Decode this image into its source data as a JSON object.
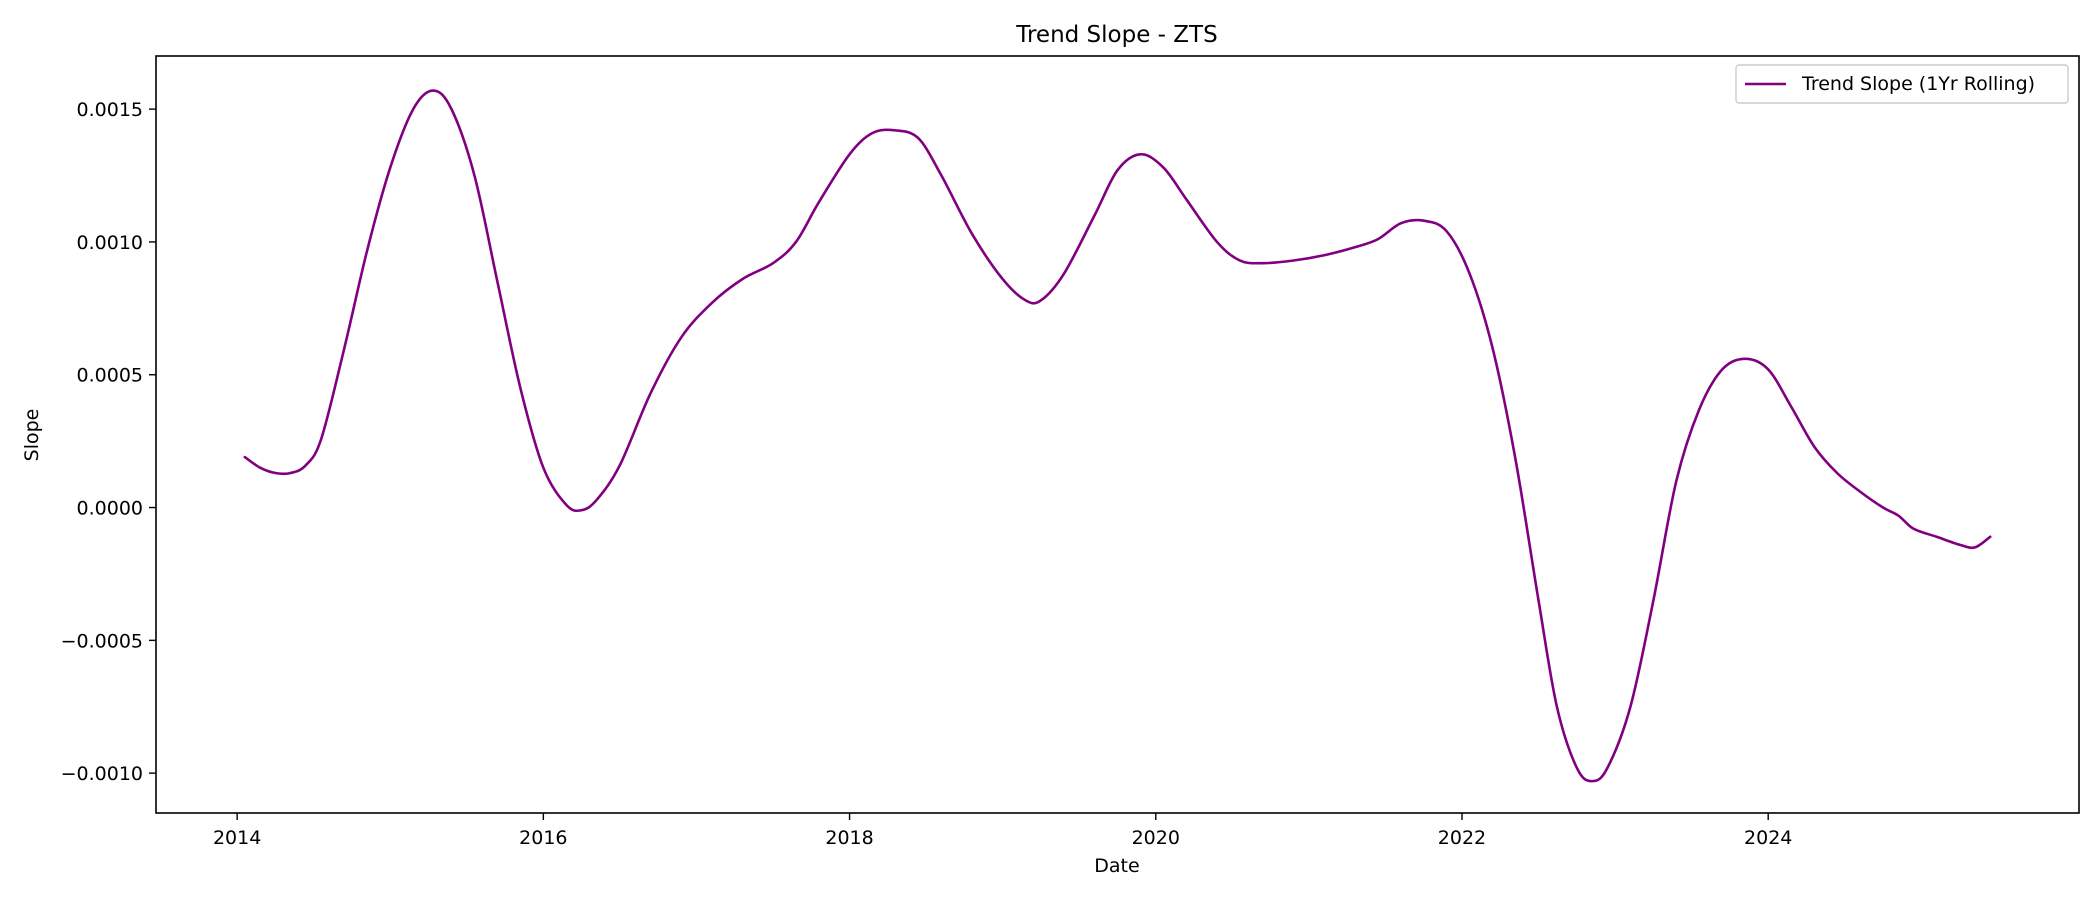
{
  "chart_data": {
    "type": "line",
    "title": "Trend Slope - ZTS",
    "xlabel": "Date",
    "ylabel": "Slope",
    "xlim": [
      2013.47,
      2026.03
    ],
    "ylim": [
      -0.00115,
      0.0017
    ],
    "x_ticks": [
      2014,
      2016,
      2018,
      2020,
      2022,
      2024
    ],
    "x_tick_labels": [
      "2014",
      "2016",
      "2018",
      "2020",
      "2022",
      "2024"
    ],
    "y_ticks": [
      -0.001,
      -0.0005,
      0.0,
      0.0005,
      0.001,
      0.0015
    ],
    "y_tick_labels": [
      "−0.0010",
      "−0.0005",
      "0.0000",
      "0.0005",
      "0.0010",
      "0.0015"
    ],
    "grid": false,
    "legend_position": "top-right",
    "series": [
      {
        "name": "Trend Slope (1Yr Rolling)",
        "color": "#800080",
        "points": [
          [
            2014.05,
            0.00019
          ],
          [
            2014.15,
            0.00015
          ],
          [
            2014.25,
            0.00013
          ],
          [
            2014.35,
            0.00013
          ],
          [
            2014.45,
            0.00016
          ],
          [
            2014.55,
            0.00026
          ],
          [
            2014.7,
            0.0006
          ],
          [
            2014.85,
            0.00097
          ],
          [
            2015.0,
            0.00128
          ],
          [
            2015.15,
            0.0015
          ],
          [
            2015.28,
            0.00157
          ],
          [
            2015.4,
            0.0015
          ],
          [
            2015.55,
            0.00125
          ],
          [
            2015.7,
            0.00085
          ],
          [
            2015.85,
            0.00045
          ],
          [
            2016.0,
            0.00015
          ],
          [
            2016.15,
            1e-05
          ],
          [
            2016.25,
            -1e-05
          ],
          [
            2016.35,
            3e-05
          ],
          [
            2016.5,
            0.00016
          ],
          [
            2016.7,
            0.00043
          ],
          [
            2016.9,
            0.00064
          ],
          [
            2017.1,
            0.00077
          ],
          [
            2017.3,
            0.00086
          ],
          [
            2017.5,
            0.00092
          ],
          [
            2017.65,
            0.001
          ],
          [
            2017.8,
            0.00115
          ],
          [
            2018.0,
            0.00133
          ],
          [
            2018.15,
            0.00141
          ],
          [
            2018.3,
            0.00142
          ],
          [
            2018.45,
            0.00139
          ],
          [
            2018.6,
            0.00125
          ],
          [
            2018.8,
            0.00103
          ],
          [
            2019.0,
            0.00086
          ],
          [
            2019.15,
            0.00078
          ],
          [
            2019.25,
            0.00078
          ],
          [
            2019.4,
            0.00088
          ],
          [
            2019.6,
            0.0011
          ],
          [
            2019.75,
            0.00127
          ],
          [
            2019.9,
            0.00133
          ],
          [
            2020.05,
            0.00128
          ],
          [
            2020.2,
            0.00116
          ],
          [
            2020.4,
            0.001
          ],
          [
            2020.55,
            0.00093
          ],
          [
            2020.7,
            0.00092
          ],
          [
            2020.9,
            0.00093
          ],
          [
            2021.1,
            0.00095
          ],
          [
            2021.3,
            0.00098
          ],
          [
            2021.45,
            0.00101
          ],
          [
            2021.6,
            0.00107
          ],
          [
            2021.75,
            0.00108
          ],
          [
            2021.9,
            0.00104
          ],
          [
            2022.05,
            0.00088
          ],
          [
            2022.2,
            0.0006
          ],
          [
            2022.35,
            0.00018
          ],
          [
            2022.5,
            -0.00035
          ],
          [
            2022.62,
            -0.00075
          ],
          [
            2022.75,
            -0.00098
          ],
          [
            2022.85,
            -0.00103
          ],
          [
            2022.95,
            -0.00098
          ],
          [
            2023.1,
            -0.00075
          ],
          [
            2023.25,
            -0.00035
          ],
          [
            2023.4,
            0.0001
          ],
          [
            2023.55,
            0.00037
          ],
          [
            2023.7,
            0.00052
          ],
          [
            2023.85,
            0.00056
          ],
          [
            2024.0,
            0.00052
          ],
          [
            2024.15,
            0.00038
          ],
          [
            2024.3,
            0.00023
          ],
          [
            2024.45,
            0.00013
          ],
          [
            2024.6,
            6e-05
          ],
          [
            2024.75,
            0.0
          ],
          [
            2024.85,
            -3e-05
          ],
          [
            2024.95,
            -8e-05
          ],
          [
            2025.1,
            -0.00011
          ],
          [
            2025.25,
            -0.00014
          ],
          [
            2025.35,
            -0.00015
          ],
          [
            2025.45,
            -0.00011
          ]
        ]
      }
    ]
  }
}
